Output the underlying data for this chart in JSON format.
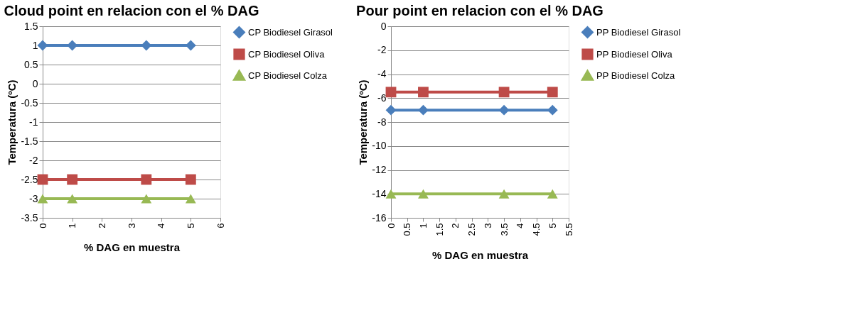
{
  "chart_data": [
    {
      "type": "line",
      "title": "Cloud point en relacion con el % DAG",
      "xlabel": "% DAG en muestra",
      "ylabel": "Temperatura (ºC)",
      "x": [
        0,
        1,
        3.5,
        5
      ],
      "xlim": [
        0,
        6
      ],
      "xticks": [
        0,
        1,
        2,
        3,
        4,
        5,
        6
      ],
      "ylim": [
        -3.5,
        1.5
      ],
      "yticks": [
        -3.5,
        -3,
        -2.5,
        -2,
        -1.5,
        -1,
        -0.5,
        0,
        0.5,
        1,
        1.5
      ],
      "grid": "y",
      "legend": "right",
      "line_style": "solid",
      "series": [
        {
          "name": "CP Biodiesel Girasol",
          "color": "#4a7ebb",
          "marker": "diamond",
          "values": [
            1,
            1,
            1,
            1
          ]
        },
        {
          "name": "CP Biodiesel Oliva",
          "color": "#be4b48",
          "marker": "square",
          "values": [
            -2.5,
            -2.5,
            -2.5,
            -2.5
          ]
        },
        {
          "name": "CP Biodiesel Colza",
          "color": "#98b954",
          "marker": "triangle",
          "values": [
            -3,
            -3,
            -3,
            -3
          ]
        }
      ]
    },
    {
      "type": "line",
      "title": "Pour point en relacion con el % DAG",
      "xlabel": "% DAG en muestra",
      "ylabel": "Temperatura (ºC)",
      "x": [
        0,
        1,
        3.5,
        5
      ],
      "xlim": [
        0,
        5.5
      ],
      "xticks": [
        0,
        0.5,
        1,
        1.5,
        2,
        2.5,
        3,
        3.5,
        4,
        4.5,
        5,
        5.5
      ],
      "ylim": [
        -16,
        0
      ],
      "yticks": [
        -16,
        -14,
        -12,
        -10,
        -8,
        -6,
        -4,
        -2,
        0
      ],
      "grid": "y",
      "legend": "right",
      "line_style": "solid",
      "series": [
        {
          "name": "PP Biodiesel Girasol",
          "color": "#4a7ebb",
          "marker": "diamond",
          "values": [
            -7,
            -7,
            -7,
            -7
          ]
        },
        {
          "name": "PP Biodiesel Oliva",
          "color": "#be4b48",
          "marker": "square",
          "values": [
            -5.5,
            -5.5,
            -5.5,
            -5.5
          ]
        },
        {
          "name": "PP Biodiesel Colza",
          "color": "#98b954",
          "marker": "triangle",
          "values": [
            -14,
            -14,
            -14,
            -14
          ]
        }
      ]
    }
  ]
}
